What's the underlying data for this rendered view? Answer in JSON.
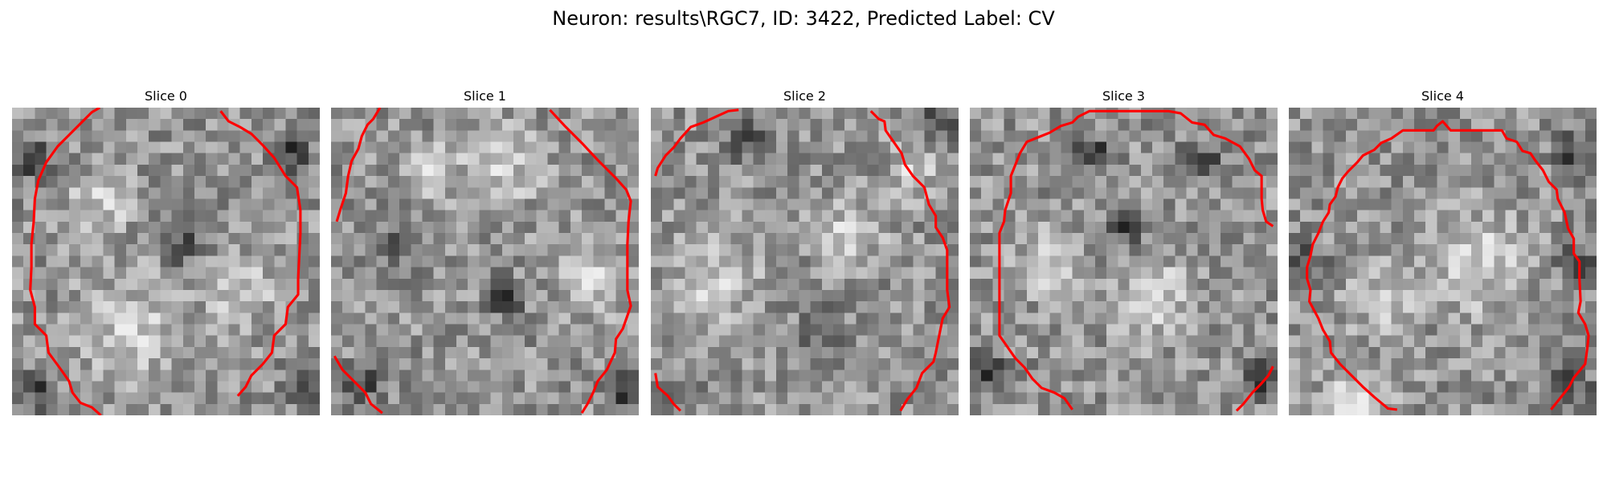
{
  "figure": {
    "title": "Neuron: results\\RGC7, ID: 3422, Predicted Label: CV"
  },
  "panels": [
    {
      "title": "Slice 0",
      "dark_spots": [
        [
          0.08,
          0.18
        ],
        [
          0.9,
          0.15
        ],
        [
          0.08,
          0.92
        ],
        [
          0.95,
          0.9
        ],
        [
          0.55,
          0.45
        ]
      ],
      "bright_spots": [
        [
          0.38,
          0.72,
          0.16
        ],
        [
          0.28,
          0.32,
          0.1
        ],
        [
          0.75,
          0.6,
          0.1
        ]
      ]
    },
    {
      "title": "Slice 1",
      "dark_spots": [
        [
          0.57,
          0.62
        ],
        [
          0.2,
          0.45
        ],
        [
          0.1,
          0.9
        ],
        [
          0.95,
          0.92
        ]
      ],
      "bright_spots": [
        [
          0.55,
          0.18,
          0.13
        ],
        [
          0.85,
          0.55,
          0.12
        ],
        [
          0.3,
          0.2,
          0.08
        ]
      ]
    },
    {
      "title": "Slice 2",
      "dark_spots": [
        [
          0.55,
          0.72
        ],
        [
          0.08,
          0.93
        ],
        [
          0.93,
          0.05
        ],
        [
          0.3,
          0.1
        ]
      ],
      "bright_spots": [
        [
          0.2,
          0.55,
          0.14
        ],
        [
          0.65,
          0.4,
          0.1
        ],
        [
          0.85,
          0.2,
          0.08
        ]
      ]
    },
    {
      "title": "Slice 3",
      "dark_spots": [
        [
          0.4,
          0.15
        ],
        [
          0.75,
          0.17
        ],
        [
          0.05,
          0.85
        ],
        [
          0.95,
          0.88
        ],
        [
          0.5,
          0.4
        ]
      ],
      "bright_spots": [
        [
          0.6,
          0.62,
          0.13
        ],
        [
          0.25,
          0.5,
          0.1
        ]
      ]
    },
    {
      "title": "Slice 4",
      "dark_spots": [
        [
          0.93,
          0.15
        ],
        [
          0.93,
          0.5
        ],
        [
          0.05,
          0.5
        ],
        [
          0.92,
          0.9
        ]
      ],
      "bright_spots": [
        [
          0.62,
          0.5,
          0.16
        ],
        [
          0.3,
          0.62,
          0.1
        ],
        [
          0.22,
          0.95,
          0.1
        ]
      ]
    }
  ]
}
